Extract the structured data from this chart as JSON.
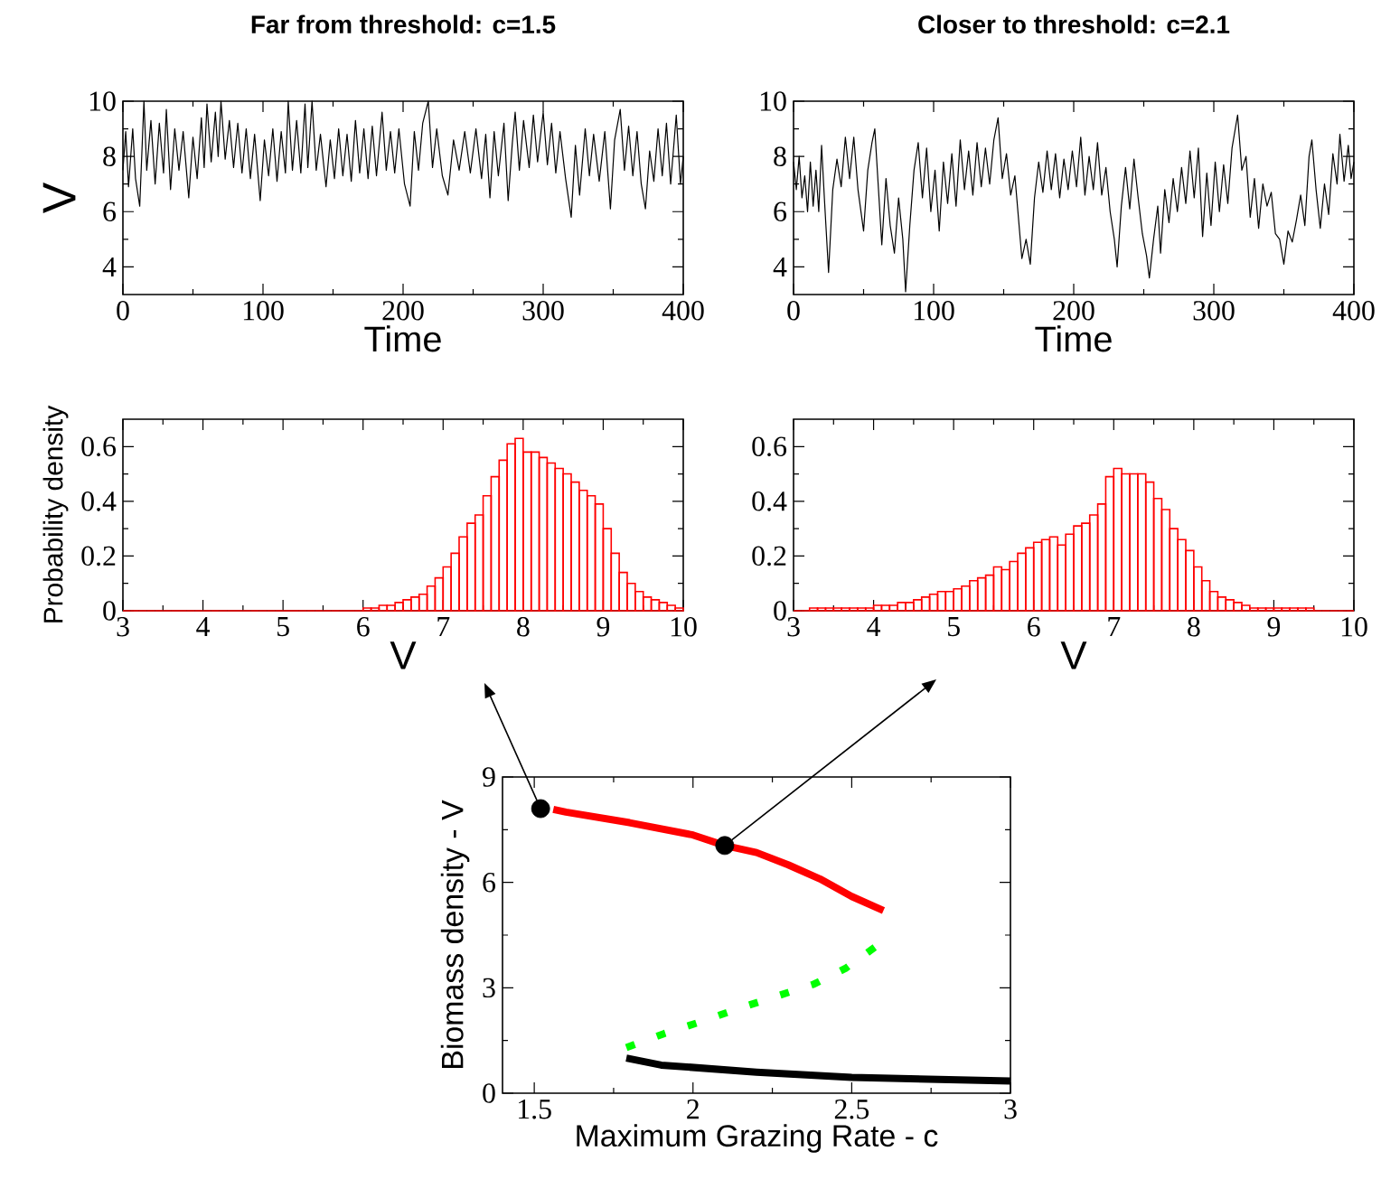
{
  "chart_data": [
    {
      "type": "line",
      "title": "Far from threshold: c=1.5",
      "xlabel": "Time",
      "ylabel": "V",
      "color": "#000000",
      "xlim": [
        0,
        400
      ],
      "ylim": [
        3,
        10
      ],
      "xticks": [
        0,
        100,
        200,
        300,
        400
      ],
      "yticks": [
        4,
        6,
        8,
        10
      ],
      "x": [
        0,
        2,
        4,
        7,
        9,
        12,
        15,
        17,
        20,
        23,
        26,
        29,
        31,
        34,
        37,
        40,
        43,
        47,
        50,
        53,
        56,
        58,
        60,
        63,
        66,
        68,
        70,
        73,
        76,
        79,
        82,
        85,
        88,
        91,
        94,
        98,
        101,
        104,
        107,
        110,
        113,
        116,
        118,
        121,
        124,
        127,
        130,
        132,
        135,
        138,
        141,
        145,
        148,
        151,
        154,
        157,
        160,
        163,
        166,
        169,
        172,
        175,
        178,
        181,
        185,
        188,
        191,
        194,
        197,
        201,
        205,
        208,
        211,
        214,
        218,
        221,
        224,
        228,
        232,
        236,
        240,
        244,
        248,
        252,
        256,
        259,
        262,
        265,
        268,
        272,
        275,
        278,
        280,
        283,
        286,
        290,
        293,
        296,
        300,
        303,
        306,
        309,
        312,
        316,
        320,
        323,
        326,
        330,
        333,
        336,
        340,
        344,
        348,
        351,
        355,
        358,
        361,
        364,
        367,
        370,
        373,
        376,
        379,
        382,
        385,
        388,
        391,
        395,
        398,
        400
      ],
      "values": [
        7.5,
        8.9,
        6.9,
        9.0,
        7.2,
        6.2,
        10.0,
        7.5,
        9.3,
        7.0,
        9.2,
        7.4,
        9.7,
        6.8,
        9.0,
        7.5,
        8.9,
        6.5,
        8.7,
        7.2,
        9.4,
        7.6,
        9.9,
        7.8,
        9.6,
        8.0,
        10.0,
        7.9,
        9.3,
        7.6,
        9.2,
        7.4,
        9.0,
        7.2,
        8.8,
        6.4,
        8.6,
        7.3,
        9.0,
        7.1,
        8.9,
        7.4,
        10.0,
        7.5,
        9.3,
        7.4,
        9.9,
        7.6,
        10.0,
        7.5,
        8.8,
        6.9,
        8.6,
        7.2,
        9.0,
        7.3,
        8.8,
        7.1,
        9.3,
        7.4,
        9.0,
        7.2,
        9.1,
        7.3,
        9.6,
        7.5,
        8.9,
        7.4,
        9.0,
        7.0,
        6.2,
        8.9,
        7.5,
        9.2,
        10.0,
        7.6,
        9.0,
        7.3,
        6.6,
        8.6,
        7.5,
        8.9,
        7.4,
        9.0,
        7.2,
        8.8,
        6.5,
        8.9,
        7.3,
        9.2,
        6.4,
        8.5,
        9.6,
        7.5,
        9.3,
        7.6,
        9.5,
        7.8,
        9.6,
        7.7,
        9.2,
        7.4,
        8.9,
        7.2,
        5.8,
        8.4,
        6.6,
        9.0,
        7.3,
        8.8,
        7.1,
        8.9,
        6.1,
        8.6,
        9.7,
        7.5,
        9.1,
        7.3,
        8.9,
        7.0,
        6.1,
        8.2,
        7.1,
        9.0,
        7.3,
        9.2,
        7.0,
        9.5,
        7.0,
        8.0
      ]
    },
    {
      "type": "line",
      "title": "Closer to threshold: c=2.1",
      "xlabel": "Time",
      "color": "#000000",
      "xlim": [
        0,
        400
      ],
      "ylim": [
        3,
        10
      ],
      "xticks": [
        0,
        100,
        200,
        300,
        400
      ],
      "yticks": [
        4,
        6,
        8,
        10
      ],
      "x": [
        0,
        2,
        4,
        6,
        8,
        10,
        12,
        14,
        16,
        18,
        20,
        22,
        25,
        28,
        31,
        34,
        37,
        40,
        43,
        46,
        50,
        53,
        56,
        58,
        61,
        63,
        66,
        69,
        72,
        75,
        78,
        80,
        83,
        86,
        89,
        92,
        95,
        98,
        101,
        104,
        107,
        110,
        113,
        116,
        119,
        122,
        125,
        128,
        131,
        134,
        137,
        140,
        143,
        146,
        149,
        152,
        155,
        158,
        161,
        163,
        166,
        169,
        172,
        175,
        178,
        181,
        184,
        187,
        190,
        193,
        196,
        199,
        202,
        205,
        208,
        211,
        214,
        217,
        220,
        223,
        226,
        229,
        231,
        234,
        237,
        240,
        243,
        246,
        249,
        252,
        254,
        257,
        260,
        262,
        265,
        268,
        271,
        274,
        277,
        280,
        283,
        286,
        289,
        292,
        295,
        298,
        301,
        304,
        307,
        310,
        313,
        317,
        320,
        323,
        326,
        329,
        332,
        335,
        338,
        341,
        344,
        347,
        350,
        353,
        356,
        359,
        362,
        365,
        368,
        370,
        373,
        376,
        379,
        382,
        385,
        388,
        390,
        393,
        396,
        398,
        400
      ],
      "values": [
        7.8,
        6.8,
        8.0,
        6.5,
        7.3,
        6.0,
        7.8,
        6.2,
        7.5,
        6.0,
        8.4,
        6.5,
        3.8,
        6.8,
        7.9,
        6.9,
        8.7,
        7.2,
        8.7,
        6.8,
        5.3,
        7.5,
        8.5,
        9.0,
        6.5,
        4.8,
        7.2,
        5.5,
        4.5,
        6.5,
        5.0,
        3.1,
        5.5,
        7.5,
        8.5,
        6.5,
        8.3,
        6.0,
        7.5,
        5.3,
        7.8,
        6.3,
        8.1,
        6.2,
        8.6,
        6.8,
        8.2,
        6.6,
        8.5,
        6.9,
        8.3,
        7.0,
        8.6,
        9.4,
        7.2,
        8.1,
        6.6,
        7.3,
        5.5,
        4.3,
        5.0,
        4.1,
        6.5,
        7.8,
        6.7,
        8.2,
        6.8,
        8.1,
        6.5,
        7.9,
        6.8,
        8.2,
        6.9,
        8.7,
        6.6,
        8.0,
        6.8,
        8.5,
        6.6,
        7.6,
        6.0,
        5.0,
        4.0,
        6.2,
        7.6,
        6.1,
        7.9,
        6.5,
        5.2,
        4.4,
        3.6,
        5.0,
        6.2,
        4.5,
        6.8,
        5.6,
        7.2,
        6.0,
        7.6,
        6.3,
        8.2,
        6.5,
        8.3,
        5.1,
        7.4,
        5.5,
        7.8,
        6.0,
        7.7,
        6.3,
        8.3,
        9.5,
        7.5,
        8.0,
        5.8,
        7.2,
        5.4,
        7.0,
        6.2,
        6.7,
        5.2,
        5.0,
        4.1,
        5.3,
        4.9,
        5.7,
        6.6,
        5.5,
        8.0,
        8.6,
        6.8,
        5.4,
        7.0,
        5.9,
        8.1,
        7.0,
        8.8,
        7.1,
        8.4,
        7.2,
        7.8
      ]
    },
    {
      "type": "histogram",
      "xlabel": "V",
      "ylabel": "Probability density",
      "color": "#ff0000",
      "xlim": [
        3,
        10
      ],
      "ylim": [
        0,
        0.7
      ],
      "xticks": [
        3,
        4,
        5,
        6,
        7,
        8,
        9,
        10
      ],
      "yticks": [
        0,
        0.2,
        0.4,
        0.6
      ],
      "bins": [
        3.0,
        3.1,
        3.2,
        3.3,
        3.4,
        3.5,
        3.6,
        3.7,
        3.8,
        3.9,
        4.0,
        4.1,
        4.2,
        4.3,
        4.4,
        4.5,
        4.6,
        4.7,
        4.8,
        4.9,
        5.0,
        5.1,
        5.2,
        5.3,
        5.4,
        5.5,
        5.6,
        5.7,
        5.8,
        5.9,
        6.0,
        6.1,
        6.2,
        6.3,
        6.4,
        6.5,
        6.6,
        6.7,
        6.8,
        6.9,
        7.0,
        7.1,
        7.2,
        7.3,
        7.4,
        7.5,
        7.6,
        7.7,
        7.8,
        7.9,
        8.0,
        8.1,
        8.2,
        8.3,
        8.4,
        8.5,
        8.6,
        8.7,
        8.8,
        8.9,
        9.0,
        9.1,
        9.2,
        9.3,
        9.4,
        9.5,
        9.6,
        9.7,
        9.8,
        9.9,
        10.0
      ],
      "values": [
        0,
        0,
        0,
        0,
        0,
        0,
        0,
        0,
        0,
        0,
        0,
        0,
        0,
        0,
        0,
        0,
        0,
        0,
        0,
        0,
        0,
        0,
        0,
        0,
        0,
        0,
        0,
        0,
        0,
        0,
        0.01,
        0.01,
        0.02,
        0.02,
        0.03,
        0.04,
        0.05,
        0.06,
        0.09,
        0.12,
        0.16,
        0.21,
        0.27,
        0.32,
        0.35,
        0.42,
        0.49,
        0.55,
        0.61,
        0.63,
        0.58,
        0.58,
        0.56,
        0.54,
        0.52,
        0.5,
        0.47,
        0.44,
        0.42,
        0.39,
        0.3,
        0.21,
        0.14,
        0.1,
        0.07,
        0.05,
        0.04,
        0.03,
        0.02,
        0.01
      ]
    },
    {
      "type": "histogram",
      "xlabel": "V",
      "color": "#ff0000",
      "xlim": [
        3,
        10
      ],
      "ylim": [
        0,
        0.7
      ],
      "xticks": [
        3,
        4,
        5,
        6,
        7,
        8,
        9,
        10
      ],
      "yticks": [
        0,
        0.2,
        0.4,
        0.6
      ],
      "bins": [
        3.0,
        3.1,
        3.2,
        3.3,
        3.4,
        3.5,
        3.6,
        3.7,
        3.8,
        3.9,
        4.0,
        4.1,
        4.2,
        4.3,
        4.4,
        4.5,
        4.6,
        4.7,
        4.8,
        4.9,
        5.0,
        5.1,
        5.2,
        5.3,
        5.4,
        5.5,
        5.6,
        5.7,
        5.8,
        5.9,
        6.0,
        6.1,
        6.2,
        6.3,
        6.4,
        6.5,
        6.6,
        6.7,
        6.8,
        6.9,
        7.0,
        7.1,
        7.2,
        7.3,
        7.4,
        7.5,
        7.6,
        7.7,
        7.8,
        7.9,
        8.0,
        8.1,
        8.2,
        8.3,
        8.4,
        8.5,
        8.6,
        8.7,
        8.8,
        8.9,
        9.0,
        9.1,
        9.2,
        9.3,
        9.4,
        9.5,
        9.6,
        9.7,
        9.8,
        9.9,
        10.0
      ],
      "values": [
        0,
        0,
        0.01,
        0.01,
        0.01,
        0.01,
        0.01,
        0.01,
        0.01,
        0.01,
        0.02,
        0.02,
        0.02,
        0.03,
        0.03,
        0.04,
        0.05,
        0.06,
        0.07,
        0.07,
        0.08,
        0.09,
        0.11,
        0.12,
        0.13,
        0.16,
        0.15,
        0.18,
        0.21,
        0.23,
        0.25,
        0.26,
        0.27,
        0.24,
        0.28,
        0.31,
        0.32,
        0.35,
        0.39,
        0.49,
        0.52,
        0.5,
        0.5,
        0.5,
        0.47,
        0.41,
        0.37,
        0.3,
        0.26,
        0.22,
        0.16,
        0.11,
        0.07,
        0.05,
        0.04,
        0.03,
        0.02,
        0.01,
        0.01,
        0.01,
        0.01,
        0.01,
        0.01,
        0.01,
        0.01,
        0,
        0,
        0,
        0,
        0
      ]
    },
    {
      "type": "line",
      "xlabel": "Maximum Grazing Rate - c",
      "ylabel": "Biomass density - V",
      "xlim": [
        1.4,
        3
      ],
      "ylim": [
        0,
        9
      ],
      "xticks": [
        1.5,
        2,
        2.5,
        3
      ],
      "yticks": [
        0,
        3,
        6,
        9
      ],
      "series": [
        {
          "color": "#ff0000",
          "x": [
            1.56,
            1.6,
            1.8,
            2.0,
            2.1,
            2.2,
            2.3,
            2.4,
            2.5,
            2.6
          ],
          "values": [
            8.08,
            8.0,
            7.7,
            7.35,
            7.05,
            6.85,
            6.5,
            6.1,
            5.6,
            5.2
          ]
        },
        {
          "color": "#00ff00",
          "line_style": "dotted",
          "x": [
            1.79,
            1.91,
            2.03,
            2.14,
            2.26,
            2.38,
            2.48,
            2.58
          ],
          "values": [
            1.3,
            1.7,
            2.05,
            2.4,
            2.75,
            3.1,
            3.55,
            4.2
          ]
        },
        {
          "color": "#000000",
          "x": [
            1.79,
            1.9,
            2.2,
            2.5,
            3.0
          ],
          "values": [
            1.0,
            0.8,
            0.6,
            0.45,
            0.35
          ]
        },
        {
          "type": "scatter",
          "marker": "circle",
          "color": "#000000",
          "x": [
            1.52,
            2.1
          ],
          "values": [
            8.1,
            7.05
          ]
        }
      ]
    }
  ]
}
